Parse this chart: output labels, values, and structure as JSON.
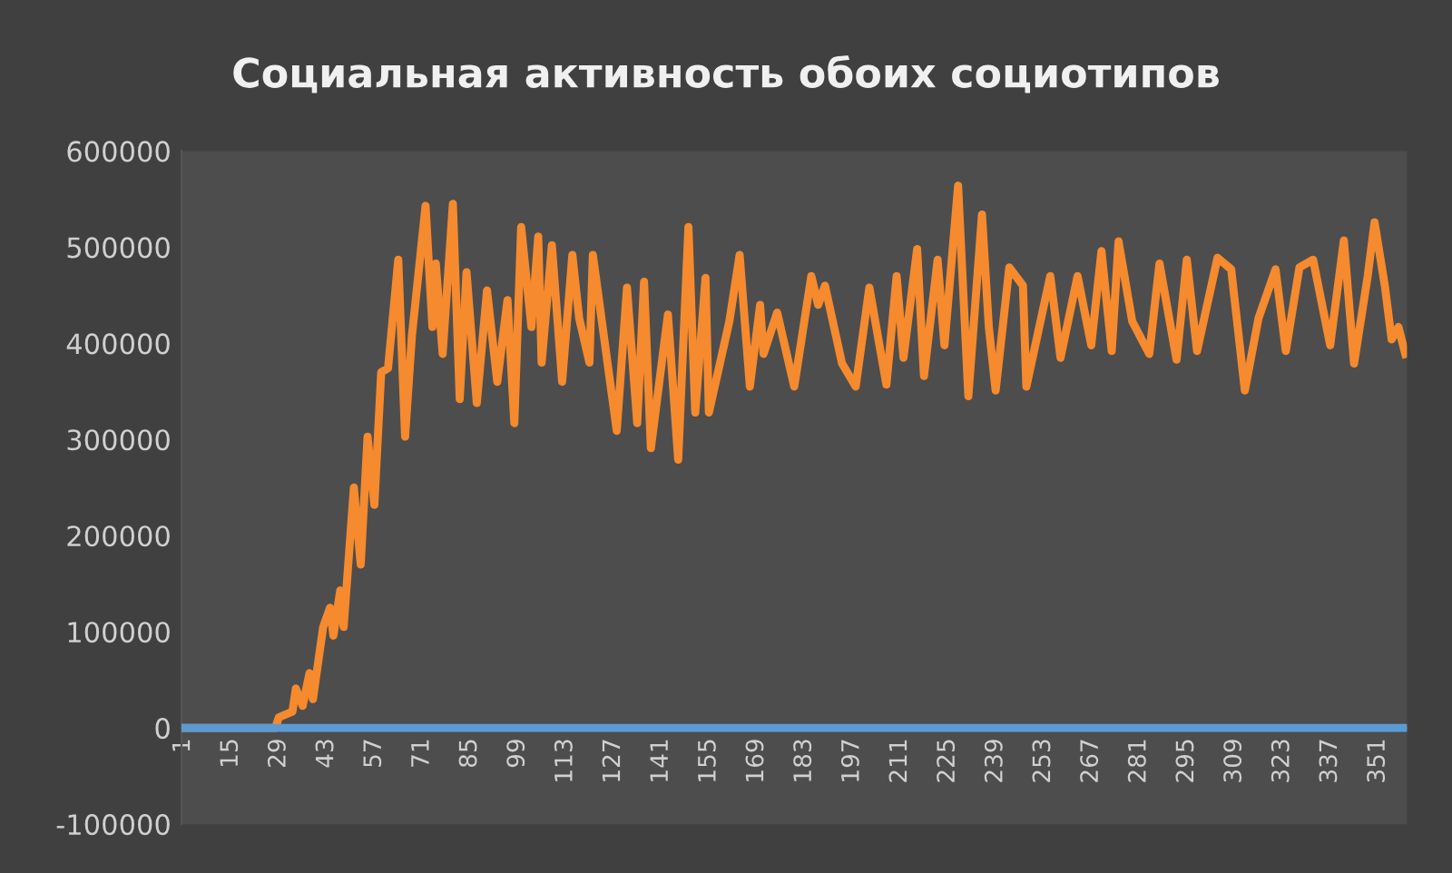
{
  "chart_data": {
    "type": "line",
    "title": "Социальная активность обоих социотипов",
    "xlim": [
      0.5,
      359.5
    ],
    "xticks": [
      1,
      15,
      29,
      43,
      57,
      71,
      85,
      99,
      113,
      127,
      141,
      155,
      169,
      183,
      197,
      211,
      225,
      239,
      253,
      267,
      281,
      295,
      309,
      323,
      337,
      351
    ],
    "ylim": [
      -100000,
      600000
    ],
    "yticks": [
      -100000,
      0,
      100000,
      200000,
      300000,
      400000,
      500000,
      600000
    ],
    "grid": false,
    "marker": "none",
    "line_style": "solid",
    "series": [
      {
        "color": "#f58a2e",
        "x": [
          1,
          28,
          29,
          33,
          34,
          36,
          38,
          39,
          42,
          44,
          45,
          47,
          48,
          51,
          53,
          55,
          57,
          59,
          61,
          64,
          66,
          68,
          72,
          74,
          75,
          77,
          80,
          82,
          84,
          87,
          90,
          93,
          96,
          98,
          100,
          103,
          105,
          106,
          109,
          112,
          115,
          117,
          120,
          121,
          128,
          131,
          134,
          136,
          138,
          143,
          146,
          149,
          151,
          154,
          155,
          161,
          164,
          167,
          170,
          171,
          175,
          180,
          185,
          187,
          189,
          194,
          198,
          202,
          207,
          210,
          212,
          216,
          218,
          222,
          224,
          228,
          231,
          235,
          237,
          239,
          243,
          247,
          248,
          255,
          258,
          263,
          267,
          270,
          273,
          275,
          279,
          284,
          287,
          292,
          295,
          298,
          304,
          308,
          312,
          316,
          321,
          324,
          328,
          332,
          337,
          341,
          344,
          348,
          350,
          353,
          355,
          357,
          359
        ],
        "values": [
          0,
          0,
          11000,
          17000,
          41000,
          23000,
          57000,
          30000,
          105000,
          125000,
          96000,
          143000,
          105000,
          250000,
          170000,
          303000,
          232000,
          370000,
          374000,
          487000,
          303000,
          408000,
          543000,
          417000,
          483000,
          389000,
          545000,
          342000,
          474000,
          338000,
          455000,
          360000,
          445000,
          317000,
          521000,
          417000,
          511000,
          380000,
          502000,
          360000,
          492000,
          426000,
          380000,
          492000,
          309000,
          458000,
          317000,
          464000,
          291000,
          430000,
          279000,
          521000,
          328000,
          468000,
          328000,
          423000,
          492000,
          355000,
          440000,
          389000,
          432000,
          355000,
          470000,
          440000,
          460000,
          379000,
          355000,
          458000,
          357000,
          470000,
          385000,
          498000,
          366000,
          487000,
          398000,
          564000,
          345000,
          534000,
          417000,
          351000,
          479000,
          460000,
          355000,
          470000,
          385000,
          470000,
          398000,
          496000,
          392000,
          506000,
          423000,
          389000,
          483000,
          383000,
          487000,
          392000,
          489000,
          477000,
          351000,
          426000,
          477000,
          392000,
          479000,
          487000,
          398000,
          507000,
          379000,
          470000,
          526000,
          460000,
          404000,
          417000,
          389000
        ]
      },
      {
        "color": "#5b9bd5",
        "x": [
          1,
          359
        ],
        "values": [
          0,
          0
        ]
      }
    ]
  }
}
